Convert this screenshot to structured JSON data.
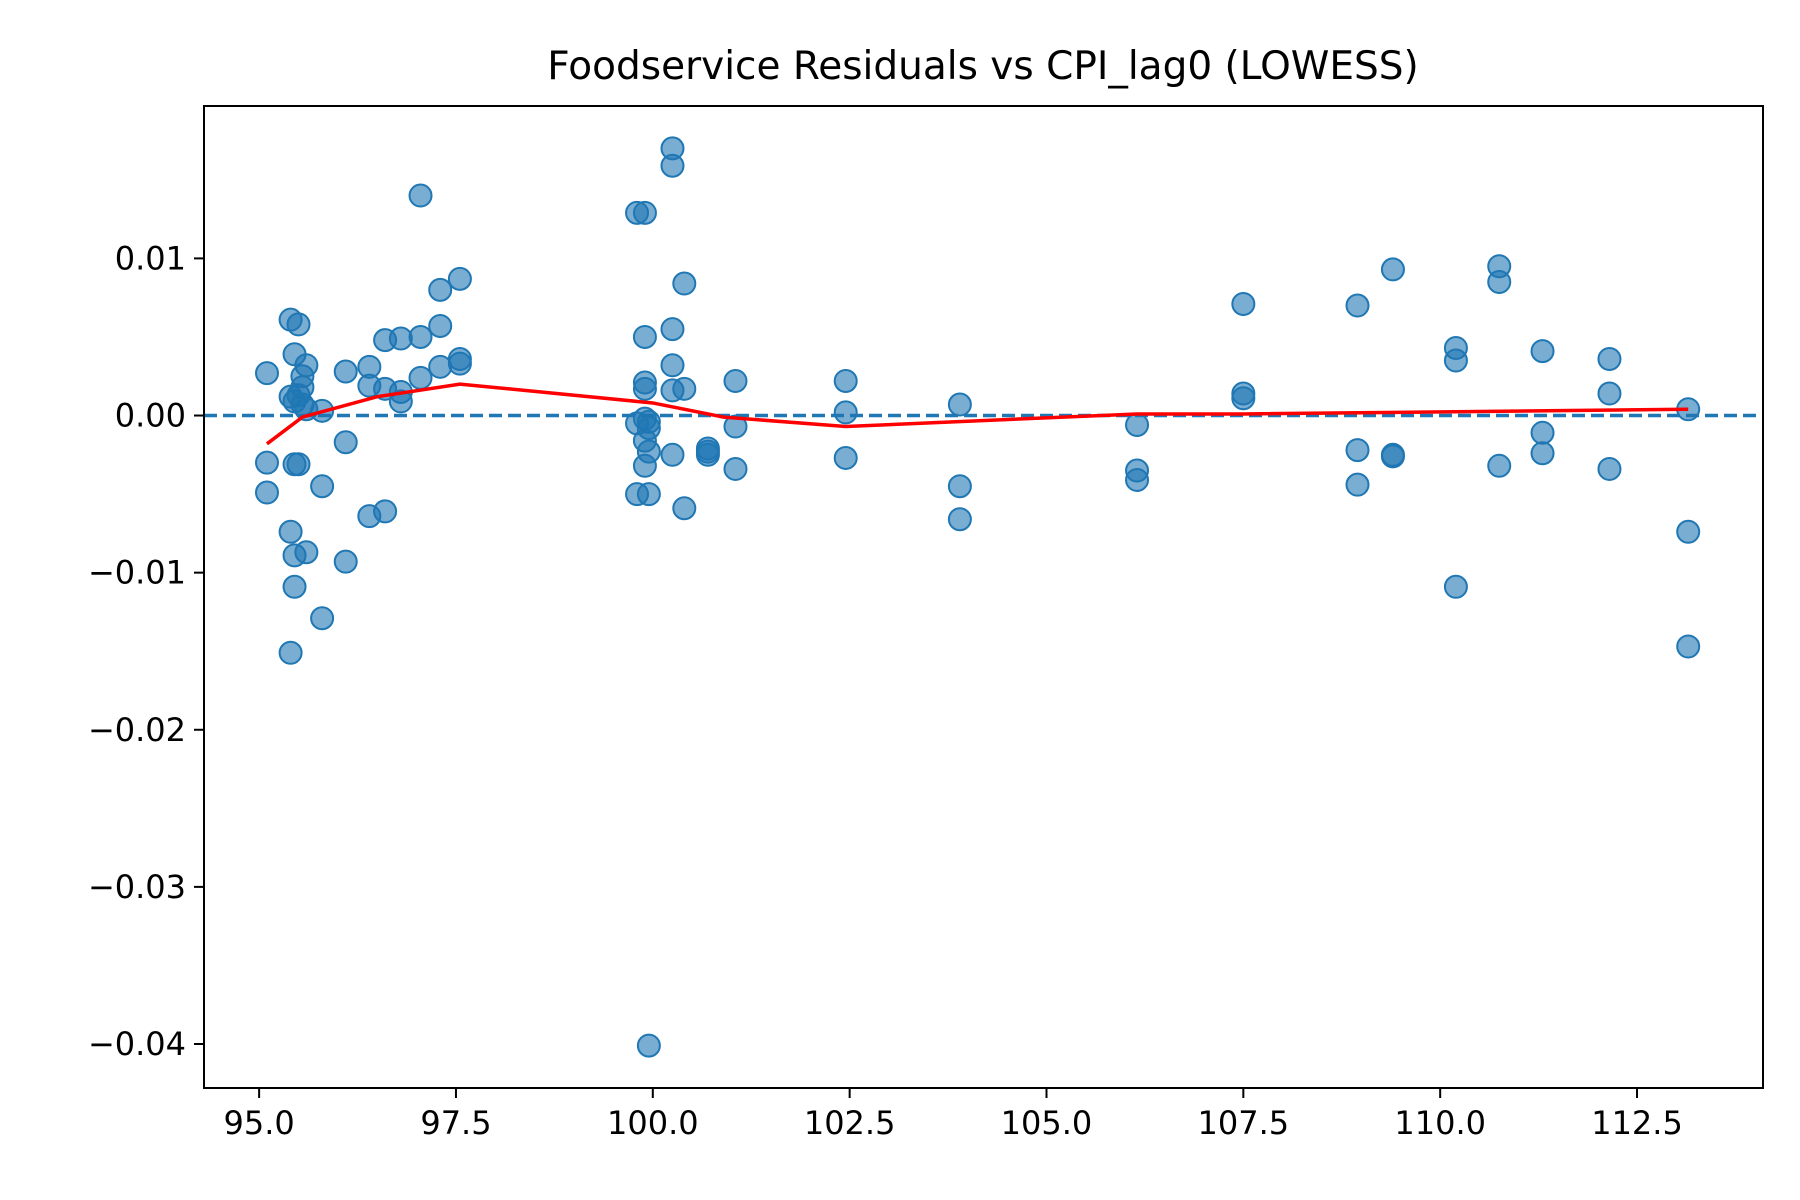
{
  "chart_data": {
    "type": "scatter",
    "title": "Foodservice Residuals vs CPI_lag0 (LOWESS)",
    "xlabel": "",
    "ylabel": "",
    "xlim": [
      94.3,
      114.1
    ],
    "ylim": [
      -0.0428,
      0.0197
    ],
    "x_ticks": [
      95.0,
      97.5,
      100.0,
      102.5,
      105.0,
      107.5,
      110.0,
      112.5
    ],
    "x_tick_labels": [
      "95.0",
      "97.5",
      "100.0",
      "102.5",
      "105.0",
      "107.5",
      "110.0",
      "112.5"
    ],
    "y_ticks": [
      0.01,
      0.0,
      -0.01,
      -0.02,
      -0.03,
      -0.04
    ],
    "y_tick_labels": [
      "0.01",
      "0.00",
      "−0.01",
      "−0.02",
      "−0.03",
      "−0.04"
    ],
    "grid": false,
    "colors": {
      "points": "#1f77b4",
      "lowess": "#ff0000",
      "zero_line": "#1f77b4"
    },
    "reference_line": {
      "y": 0.0,
      "style": "dashed"
    },
    "series": [
      {
        "kind": "scatter",
        "points": [
          [
            95.1,
            0.0027
          ],
          [
            95.1,
            -0.003
          ],
          [
            95.1,
            -0.0049
          ],
          [
            95.4,
            0.0061
          ],
          [
            95.4,
            -0.0074
          ],
          [
            95.4,
            -0.0151
          ],
          [
            95.4,
            0.0012
          ],
          [
            95.45,
            0.0039
          ],
          [
            95.45,
            -0.0031
          ],
          [
            95.45,
            -0.0089
          ],
          [
            95.45,
            -0.0109
          ],
          [
            95.45,
            0.0009
          ],
          [
            95.5,
            0.0058
          ],
          [
            95.5,
            0.0013
          ],
          [
            95.5,
            -0.0031
          ],
          [
            95.55,
            0.0025
          ],
          [
            95.55,
            0.0018
          ],
          [
            95.55,
            0.0007
          ],
          [
            95.6,
            0.0032
          ],
          [
            95.6,
            0.0004
          ],
          [
            95.6,
            -0.0087
          ],
          [
            95.8,
            0.0003
          ],
          [
            95.8,
            -0.0045
          ],
          [
            95.8,
            -0.0129
          ],
          [
            96.1,
            0.0028
          ],
          [
            96.1,
            -0.0017
          ],
          [
            96.1,
            -0.0093
          ],
          [
            96.4,
            0.0031
          ],
          [
            96.4,
            0.0019
          ],
          [
            96.4,
            -0.0064
          ],
          [
            96.6,
            0.0048
          ],
          [
            96.6,
            0.0017
          ],
          [
            96.6,
            -0.0061
          ],
          [
            96.8,
            0.0049
          ],
          [
            96.8,
            0.0015
          ],
          [
            96.8,
            0.0009
          ],
          [
            97.05,
            0.014
          ],
          [
            97.05,
            0.005
          ],
          [
            97.05,
            0.0024
          ],
          [
            97.3,
            0.008
          ],
          [
            97.3,
            0.0057
          ],
          [
            97.3,
            0.0031
          ],
          [
            97.55,
            0.0087
          ],
          [
            97.55,
            0.0036
          ],
          [
            97.55,
            0.0033
          ],
          [
            99.8,
            0.0129
          ],
          [
            99.8,
            -0.0005
          ],
          [
            99.8,
            -0.005
          ],
          [
            99.9,
            0.0129
          ],
          [
            99.9,
            0.005
          ],
          [
            99.9,
            0.0021
          ],
          [
            99.9,
            0.0017
          ],
          [
            99.9,
            -0.0002
          ],
          [
            99.9,
            -0.0016
          ],
          [
            99.9,
            -0.0032
          ],
          [
            99.95,
            -0.0004
          ],
          [
            99.95,
            -0.0008
          ],
          [
            99.95,
            -0.0023
          ],
          [
            99.95,
            -0.005
          ],
          [
            99.95,
            -0.0401
          ],
          [
            100.25,
            0.017
          ],
          [
            100.25,
            0.0159
          ],
          [
            100.25,
            0.0055
          ],
          [
            100.25,
            0.0032
          ],
          [
            100.25,
            0.0016
          ],
          [
            100.25,
            -0.0025
          ],
          [
            100.4,
            0.0084
          ],
          [
            100.4,
            0.0017
          ],
          [
            100.4,
            -0.0059
          ],
          [
            100.7,
            -0.0021
          ],
          [
            100.7,
            -0.0023
          ],
          [
            100.7,
            -0.0025
          ],
          [
            101.05,
            0.0022
          ],
          [
            101.05,
            -0.0007
          ],
          [
            101.05,
            -0.0034
          ],
          [
            102.45,
            0.0022
          ],
          [
            102.45,
            0.0002
          ],
          [
            102.45,
            -0.0027
          ],
          [
            103.9,
            0.0007
          ],
          [
            103.9,
            -0.0045
          ],
          [
            103.9,
            -0.0066
          ],
          [
            106.15,
            -0.0006
          ],
          [
            106.15,
            -0.0035
          ],
          [
            106.15,
            -0.0041
          ],
          [
            107.5,
            0.0071
          ],
          [
            107.5,
            0.0014
          ],
          [
            107.5,
            0.0011
          ],
          [
            108.95,
            0.007
          ],
          [
            108.95,
            -0.0022
          ],
          [
            108.95,
            -0.0044
          ],
          [
            109.4,
            0.0093
          ],
          [
            109.4,
            -0.0025
          ],
          [
            109.4,
            -0.0026
          ],
          [
            110.2,
            0.0043
          ],
          [
            110.2,
            0.0035
          ],
          [
            110.2,
            -0.0109
          ],
          [
            110.75,
            0.0095
          ],
          [
            110.75,
            0.0085
          ],
          [
            110.75,
            -0.0032
          ],
          [
            111.3,
            0.0041
          ],
          [
            111.3,
            -0.0011
          ],
          [
            111.3,
            -0.0024
          ],
          [
            112.15,
            0.0036
          ],
          [
            112.15,
            0.0014
          ],
          [
            112.15,
            -0.0034
          ],
          [
            113.15,
            0.0004
          ],
          [
            113.15,
            -0.0074
          ],
          [
            113.15,
            -0.0147
          ]
        ]
      },
      {
        "kind": "line",
        "x": [
          95.1,
          95.55,
          96.5,
          97.55,
          100.0,
          100.9,
          102.45,
          106.15,
          107.5,
          113.15
        ],
        "y": [
          -0.0018,
          -0.0001,
          0.0012,
          0.002,
          0.0008,
          -0.0001,
          -0.0007,
          0.0001,
          0.0001,
          0.0004
        ]
      }
    ]
  }
}
